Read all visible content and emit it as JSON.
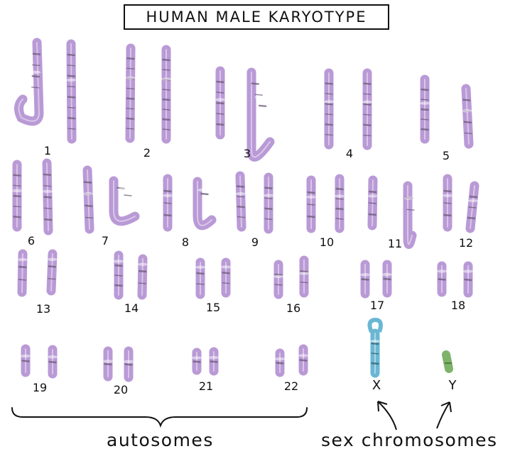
{
  "title": "HUMAN MALE KARYOTYPE",
  "pairs": [
    {
      "label": "1"
    },
    {
      "label": "2"
    },
    {
      "label": "3"
    },
    {
      "label": "4"
    },
    {
      "label": "5"
    },
    {
      "label": "6"
    },
    {
      "label": "7"
    },
    {
      "label": "8"
    },
    {
      "label": "9"
    },
    {
      "label": "10"
    },
    {
      "label": "11"
    },
    {
      "label": "12"
    },
    {
      "label": "13"
    },
    {
      "label": "14"
    },
    {
      "label": "15"
    },
    {
      "label": "16"
    },
    {
      "label": "17"
    },
    {
      "label": "18"
    },
    {
      "label": "19"
    },
    {
      "label": "20"
    },
    {
      "label": "21"
    },
    {
      "label": "22"
    }
  ],
  "sex_chromosomes": [
    {
      "label": "X",
      "color": "#6ab7d4"
    },
    {
      "label": "Y",
      "color": "#7fb36a"
    }
  ],
  "autosomes_label": "autosomes",
  "sex_label": "sex chromosomes",
  "colors": {
    "autosome": "#b99ad6",
    "band": "#6c5a78",
    "x_chromosome": "#6ab7d4",
    "y_chromosome": "#7fb36a",
    "ink": "#111111"
  }
}
